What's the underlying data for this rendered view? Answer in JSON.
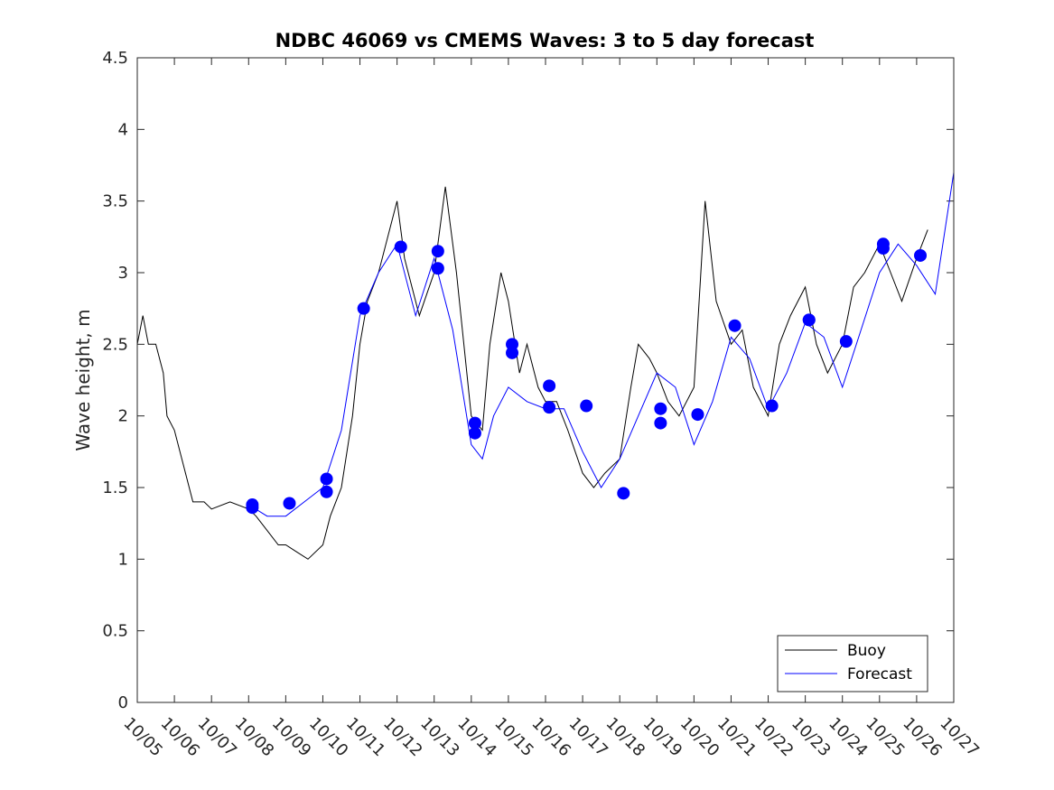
{
  "chart_data": {
    "type": "line",
    "title": "NDBC 46069 vs CMEMS Waves: 3 to 5 day forecast",
    "xlabel": "",
    "ylabel": "Wave height, m",
    "ylim": [
      0,
      4.5
    ],
    "xlim": [
      0,
      22
    ],
    "y_ticks": [
      "0",
      "0.5",
      "1",
      "1.5",
      "2",
      "2.5",
      "3",
      "3.5",
      "4",
      "4.5"
    ],
    "x_ticks": [
      "10/05",
      "10/06",
      "10/07",
      "10/08",
      "10/09",
      "10/10",
      "10/11",
      "10/12",
      "10/13",
      "10/14",
      "10/15",
      "10/16",
      "10/17",
      "10/18",
      "10/19",
      "10/20",
      "10/21",
      "10/22",
      "10/23",
      "10/24",
      "10/25",
      "10/26",
      "10/27"
    ],
    "legend": {
      "placement": "bottom-right",
      "entries": [
        "Buoy",
        "Forecast"
      ]
    },
    "colors": {
      "buoy": "#000000",
      "forecast": "#0000ff",
      "marker": "#0000ff"
    },
    "series": [
      {
        "name": "Buoy",
        "x": [
          0,
          0.15,
          0.3,
          0.5,
          0.7,
          0.8,
          1.0,
          1.2,
          1.5,
          1.8,
          2.0,
          2.5,
          3.0,
          3.2,
          3.5,
          3.8,
          4.0,
          4.3,
          4.6,
          5.0,
          5.2,
          5.5,
          5.8,
          6.0,
          6.2,
          6.5,
          7.0,
          7.2,
          7.4,
          7.6,
          8.0,
          8.3,
          8.6,
          9.0,
          9.3,
          9.5,
          9.8,
          10.0,
          10.3,
          10.5,
          10.8,
          11.0,
          11.3,
          11.6,
          12.0,
          12.3,
          12.6,
          13.0,
          13.3,
          13.5,
          13.8,
          14.0,
          14.3,
          14.6,
          15.0,
          15.3,
          15.6,
          16.0,
          16.3,
          16.6,
          17.0,
          17.3,
          17.6,
          18.0,
          18.3,
          18.6,
          19.0,
          19.3,
          19.6,
          20.0,
          20.3,
          20.6,
          21.0,
          21.3
        ],
        "y": [
          2.5,
          2.7,
          2.5,
          2.5,
          2.3,
          2.0,
          1.9,
          1.7,
          1.4,
          1.4,
          1.35,
          1.4,
          1.35,
          1.3,
          1.2,
          1.1,
          1.1,
          1.05,
          1.0,
          1.1,
          1.3,
          1.5,
          2.0,
          2.5,
          2.8,
          3.0,
          3.5,
          3.1,
          2.9,
          2.7,
          3.0,
          3.6,
          3.0,
          2.0,
          1.9,
          2.5,
          3.0,
          2.8,
          2.3,
          2.5,
          2.2,
          2.1,
          2.1,
          1.9,
          1.6,
          1.5,
          1.6,
          1.7,
          2.2,
          2.5,
          2.4,
          2.3,
          2.1,
          2.0,
          2.2,
          3.5,
          2.8,
          2.5,
          2.6,
          2.2,
          2.0,
          2.5,
          2.7,
          2.9,
          2.5,
          2.3,
          2.5,
          2.9,
          3.0,
          3.2,
          3.0,
          2.8,
          3.1,
          3.3
        ]
      },
      {
        "name": "Forecast",
        "x": [
          3.0,
          3.5,
          4.0,
          4.5,
          5.0,
          5.5,
          6.0,
          6.5,
          7.0,
          7.5,
          8.0,
          8.5,
          9.0,
          9.3,
          9.6,
          10.0,
          10.5,
          11.0,
          11.5,
          12.0,
          12.5,
          13.0,
          13.5,
          14.0,
          14.5,
          15.0,
          15.5,
          16.0,
          16.5,
          17.0,
          17.5,
          18.0,
          18.5,
          19.0,
          19.5,
          20.0,
          20.5,
          21.0,
          21.5,
          22.0
        ],
        "y": [
          1.38,
          1.3,
          1.3,
          1.4,
          1.5,
          1.9,
          2.7,
          3.0,
          3.2,
          2.7,
          3.1,
          2.6,
          1.8,
          1.7,
          2.0,
          2.2,
          2.1,
          2.05,
          2.05,
          1.75,
          1.5,
          1.7,
          2.0,
          2.3,
          2.2,
          1.8,
          2.1,
          2.55,
          2.4,
          2.05,
          2.3,
          2.65,
          2.55,
          2.2,
          2.6,
          3.0,
          3.2,
          3.05,
          2.85,
          3.7
        ]
      }
    ],
    "forecast_markers": {
      "x": [
        3.1,
        3.1,
        4.1,
        5.1,
        5.1,
        6.1,
        7.1,
        8.1,
        8.1,
        9.1,
        9.1,
        10.1,
        10.1,
        11.1,
        11.1,
        12.1,
        13.1,
        14.1,
        14.1,
        15.1,
        16.1,
        17.1,
        18.1,
        18.1,
        19.1,
        20.1,
        20.1,
        21.1
      ],
      "y": [
        1.38,
        1.36,
        1.39,
        1.56,
        1.47,
        2.75,
        3.18,
        3.15,
        3.03,
        1.95,
        1.88,
        2.5,
        2.44,
        2.21,
        2.06,
        2.07,
        1.46,
        1.95,
        2.05,
        2.01,
        2.63,
        2.07,
        2.67,
        2.67,
        2.52,
        3.2,
        3.17,
        3.12
      ]
    }
  }
}
